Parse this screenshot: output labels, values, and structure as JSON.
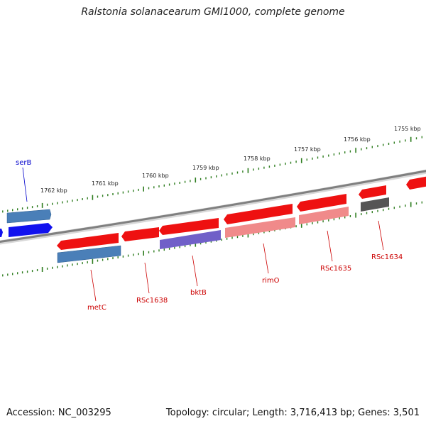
{
  "title": "Ralstonia solanacearum GMI1000, complete genome",
  "accession_text": "Accession: NC_003295",
  "topology_text": "Topology: circular; Length: 3,716,413 bp; Genes: 3,501",
  "colors": {
    "backbone": "#8a8a8a",
    "tick": "#2e7d1f",
    "red_gene": "#ee1111",
    "pink_gene": "#f08a8a",
    "steel_gene": "#4a7fb8",
    "blue_gene": "#1111ee",
    "purple_gene": "#7060c8",
    "gray_gene": "#555555",
    "red_label": "#cc0000",
    "blue_label": "#0000cc"
  },
  "kbp_labels": [
    "1762 kbp",
    "1761 kbp",
    "1760 kbp",
    "1759 kbp",
    "1758 kbp",
    "1757 kbp",
    "1756 kbp",
    "1755 kbp"
  ],
  "gene_labels": {
    "serB": "serB",
    "metC": "metC",
    "RSc1638": "RSc1638",
    "bktB": "bktB",
    "rimO": "rimO",
    "RSc1635": "RSc1635",
    "RSc1634": "RSc1634"
  }
}
